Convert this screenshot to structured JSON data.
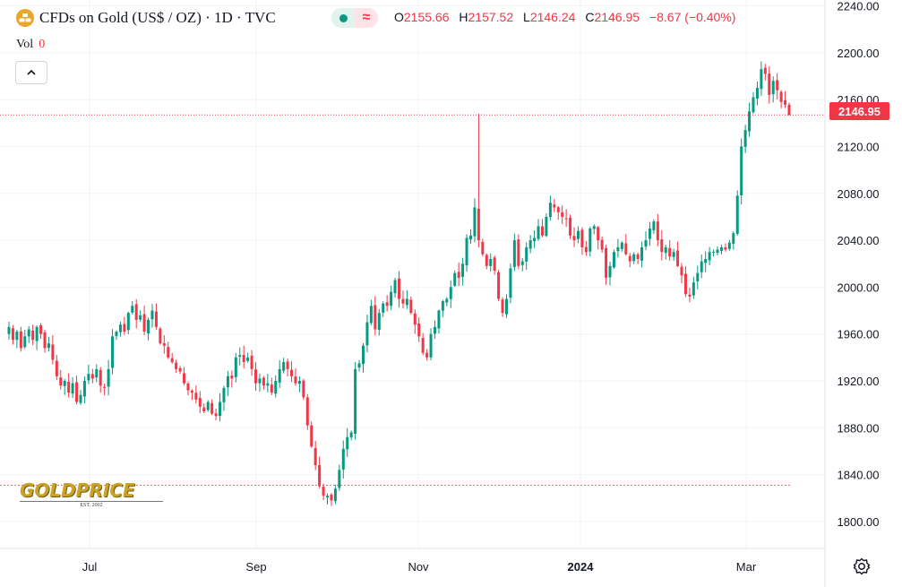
{
  "header": {
    "title": "CFDs on Gold (US$ / OZ) · 1D · TVC",
    "ohlc": {
      "open_label": "O",
      "open": "2155.66",
      "high_label": "H",
      "high": "2157.52",
      "low_label": "L",
      "low": "2146.24",
      "close_label": "C",
      "close": "2146.95",
      "change": "−8.67 (−0.40%)"
    },
    "pill_symbol": "≈"
  },
  "volume": {
    "label": "Vol",
    "value": "0"
  },
  "watermark": {
    "brand": "GOLDPRICE",
    "sub": "EST. 2002"
  },
  "colors": {
    "up": "#089981",
    "down": "#f23645",
    "grid": "#f0f3fa",
    "text": "#131722"
  },
  "icons": {
    "logo": "gold-bars-icon",
    "collapse": "chevron-up-icon",
    "settings": "gear-icon"
  },
  "chart_data": {
    "type": "candlestick",
    "title": "CFDs on Gold (US$ / OZ) · 1D · TVC",
    "x_tick_labels": [
      "Jul",
      "Sep",
      "Nov",
      "2024",
      "Mar"
    ],
    "y_tick_labels": [
      "2240.00",
      "2200.00",
      "2160.00",
      "2120.00",
      "2080.00",
      "2040.00",
      "2000.00",
      "1960.00",
      "1920.00",
      "1880.00",
      "1840.00",
      "1800.00"
    ],
    "ylim": [
      1777,
      2245
    ],
    "last_price": "2146.95",
    "last_price_value": 2146.95,
    "reference_line_value": 1831,
    "grid": true,
    "series_close": [
      1966,
      1955,
      1962,
      1948,
      1958,
      1964,
      1955,
      1966,
      1960,
      1948,
      1952,
      1938,
      1924,
      1916,
      1920,
      1910,
      1918,
      1902,
      1908,
      1920,
      1926,
      1922,
      1930,
      1916,
      1914,
      1930,
      1958,
      1962,
      1968,
      1962,
      1978,
      1984,
      1972,
      1976,
      1962,
      1972,
      1980,
      1966,
      1952,
      1950,
      1940,
      1936,
      1930,
      1928,
      1918,
      1912,
      1910,
      1904,
      1898,
      1894,
      1902,
      1892,
      1890,
      1902,
      1914,
      1924,
      1922,
      1940,
      1942,
      1936,
      1940,
      1930,
      1918,
      1922,
      1916,
      1918,
      1910,
      1920,
      1930,
      1936,
      1930,
      1924,
      1918,
      1920,
      1906,
      1882,
      1864,
      1848,
      1830,
      1822,
      1822,
      1818,
      1828,
      1844,
      1862,
      1872,
      1876,
      1930,
      1935,
      1950,
      1970,
      1984,
      1964,
      1978,
      1986,
      1984,
      1996,
      2006,
      1990,
      1986,
      1990,
      1978,
      1968,
      1958,
      1944,
      1940,
      1960,
      1966,
      1980,
      1988,
      1990,
      2000,
      2012,
      2008,
      2020,
      2042,
      2044,
      2068,
      2040,
      2028,
      2018,
      2024,
      2014,
      1990,
      1978,
      1990,
      2016,
      2040,
      2018,
      2022,
      2034,
      2040,
      2042,
      2052,
      2044,
      2060,
      2072,
      2068,
      2064,
      2060,
      2058,
      2044,
      2040,
      2048,
      2034,
      2030,
      2050,
      2052,
      2040,
      2032,
      2008,
      2018,
      2030,
      2034,
      2038,
      2028,
      2022,
      2028,
      2024,
      2034,
      2040,
      2050,
      2056,
      2040,
      2030,
      2034,
      2026,
      2030,
      2018,
      2010,
      1994,
      1992,
      2004,
      2012,
      2022,
      2024,
      2030,
      2030,
      2032,
      2034,
      2032,
      2038,
      2046,
      2078,
      2120,
      2134,
      2150,
      2162,
      2170,
      2186,
      2182,
      2164,
      2176,
      2168,
      2158,
      2155.66,
      2146.95
    ]
  }
}
